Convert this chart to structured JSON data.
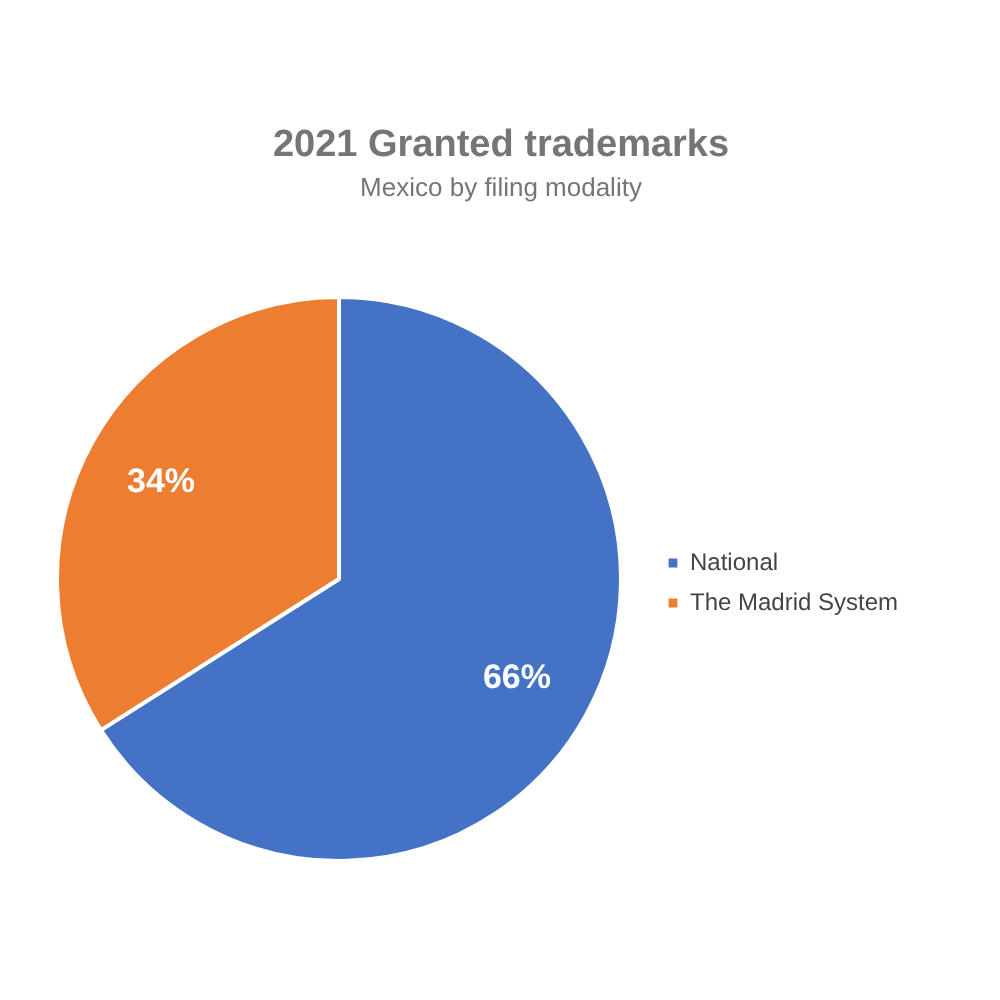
{
  "chart_data": {
    "type": "pie",
    "title": "2021 Granted trademarks",
    "subtitle": "Mexico by filing modality",
    "categories": [
      "National",
      "The Madrid System"
    ],
    "values": [
      66,
      34
    ],
    "colors": [
      "#4472c4",
      "#ed7d31"
    ],
    "value_labels": [
      "66%",
      "34%"
    ],
    "legend": "right"
  }
}
